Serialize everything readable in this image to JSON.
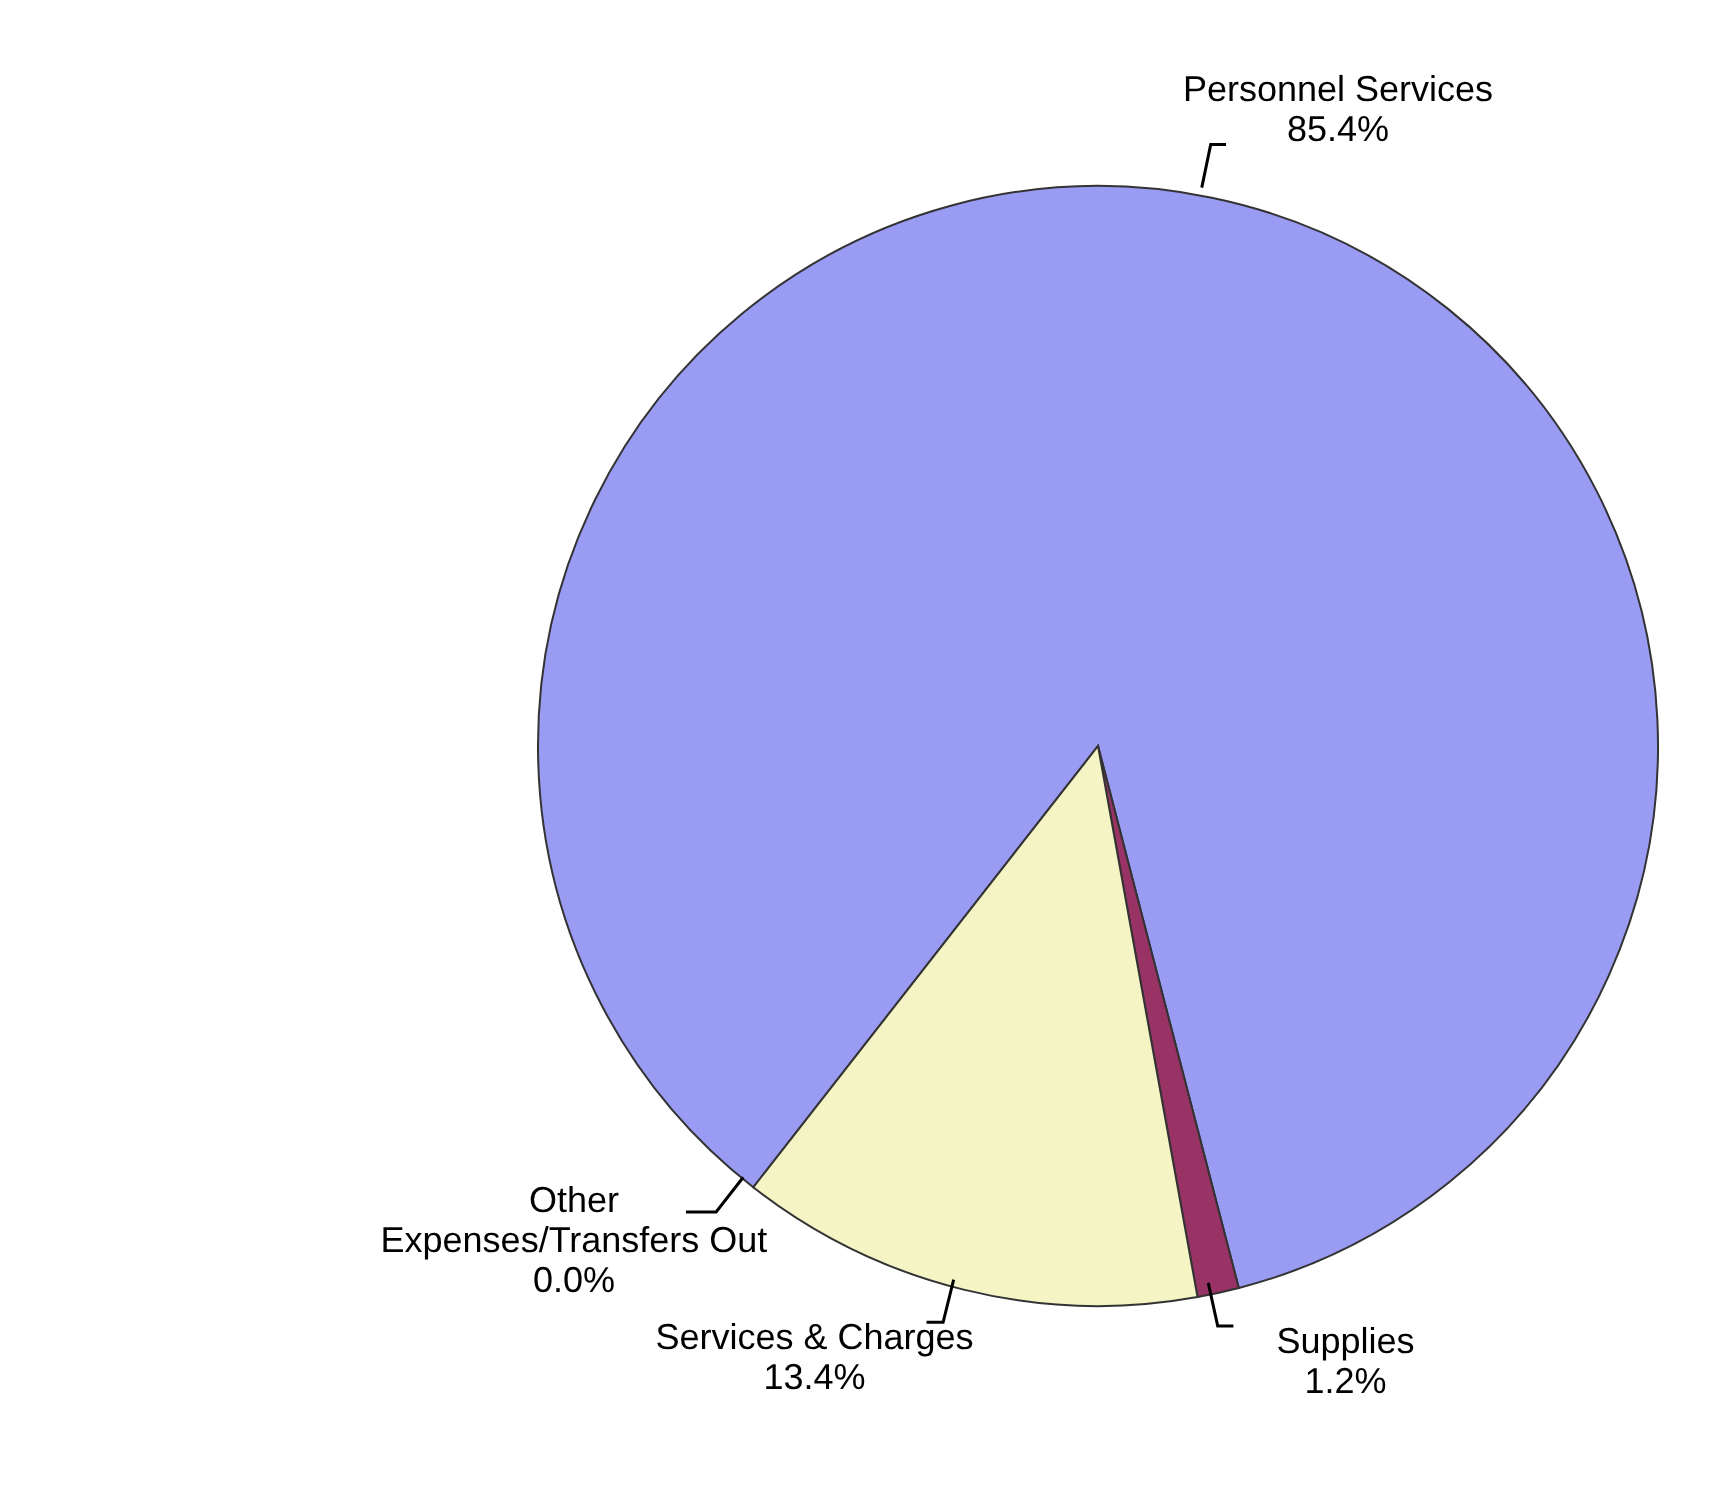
{
  "chart_data": {
    "type": "pie",
    "categories": [
      "Personnel Services",
      "Supplies",
      "Services & Charges",
      "Other Expenses/Transfers Out"
    ],
    "values": [
      85.4,
      1.2,
      13.4,
      0.0
    ],
    "value_labels": [
      "85.4%",
      "1.2%",
      "13.4%",
      "0.0%"
    ],
    "colors": [
      "#9a9cf4",
      "#993366",
      "#f4f4c4",
      "#8080c0"
    ]
  }
}
